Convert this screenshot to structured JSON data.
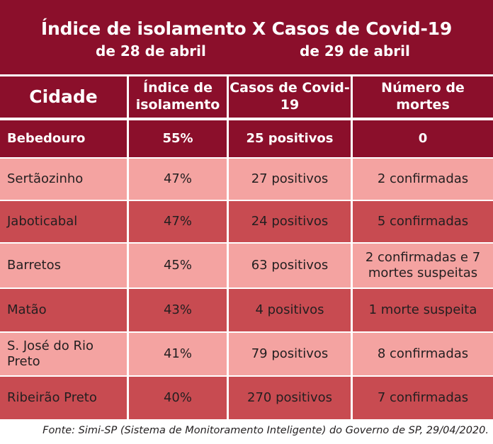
{
  "title": {
    "line1": "Índice de isolamento X Casos de Covid-19",
    "left": "de 28 de abril",
    "right": "de 29 de abril"
  },
  "chart_data": {
    "type": "table",
    "columns": [
      "Cidade",
      "Índice de isolamento",
      "Casos de Covid-19",
      "Número de mortes"
    ],
    "rows": [
      {
        "city": "Bebedouro",
        "isolation": "55%",
        "cases": "25 positivos",
        "deaths": "0"
      },
      {
        "city": "Sertãozinho",
        "isolation": "47%",
        "cases": "27 positivos",
        "deaths": "2 confirmadas"
      },
      {
        "city": "Jaboticabal",
        "isolation": "47%",
        "cases": "24 positivos",
        "deaths": "5 confirmadas"
      },
      {
        "city": "Barretos",
        "isolation": "45%",
        "cases": "63 positivos",
        "deaths": "2 confirmadas e 7 mortes suspeitas"
      },
      {
        "city": "Matão",
        "isolation": "43%",
        "cases": "4 positivos",
        "deaths": "1 morte suspeita"
      },
      {
        "city": "S. José do Rio Preto",
        "isolation": "41%",
        "cases": "79 positivos",
        "deaths": "8 confirmadas"
      },
      {
        "city": "Ribeirão Preto",
        "isolation": "40%",
        "cases": "270 positivos",
        "deaths": "7 confirmadas"
      }
    ]
  },
  "source": "Fonte: Simi-SP (Sistema de Monitoramento Inteligente) do Governo de SP, 29/04/2020.",
  "colors": {
    "header": "#8b0f2b",
    "row_light": "#f4a3a1",
    "row_dark": "#c84b51"
  }
}
